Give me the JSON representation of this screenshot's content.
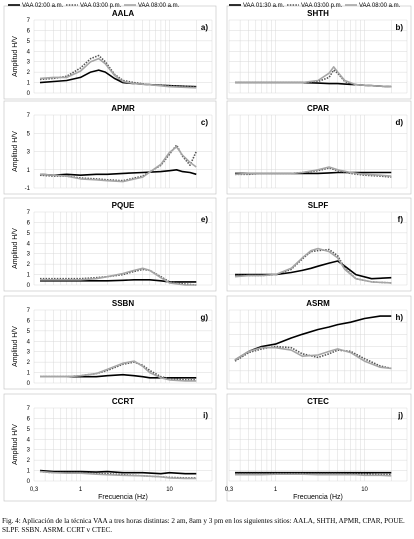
{
  "figure": {
    "caption": "Fig. 4: Aplicación de la técnica VAA a tres horas distintas: 2 am, 8am y 3 pm en los siguientes sitios: AALA, SHTH, APMR, CPAR, POUE. SLPF. SSBN. ASRM. CCRT v CTEC."
  },
  "colors": {
    "series_a": "#000000",
    "series_b": "#555555",
    "series_c": "#a6a6a6",
    "grid": "#d9d9d9"
  },
  "chart_data": [
    {
      "type": "line",
      "title": "AALA",
      "panel_letter": "a)",
      "ylabel": "Amplitud H/V",
      "xlabel": "",
      "x_scale": "log",
      "xlim": [
        0.3,
        30
      ],
      "ylim": [
        0,
        7
      ],
      "y_ticks": [
        "0",
        "1",
        "2",
        "3",
        "4",
        "5",
        "6",
        "7"
      ],
      "x_ticks": [],
      "legend": {
        "placement": "top",
        "entries": [
          "VAA 02:00 a.m.",
          "VAA 03:00 p.m.",
          "VAA 08:00 a.m."
        ]
      },
      "x": [
        0.35,
        0.5,
        0.7,
        1.0,
        1.3,
        1.6,
        1.9,
        2.4,
        3.0,
        4.0,
        6.0,
        10,
        20
      ],
      "series": [
        {
          "name": "VAA 02:00 a.m.",
          "values": [
            1.0,
            1.1,
            1.2,
            1.5,
            2.0,
            2.2,
            2.0,
            1.4,
            1.0,
            0.9,
            0.8,
            0.7,
            0.6
          ]
        },
        {
          "name": "VAA 03:00 p.m.",
          "values": [
            1.3,
            1.4,
            1.6,
            2.4,
            3.3,
            3.6,
            3.0,
            1.8,
            1.2,
            1.0,
            0.8,
            0.7,
            0.6
          ]
        },
        {
          "name": "VAA 08:00 a.m.",
          "values": [
            1.4,
            1.5,
            1.5,
            2.1,
            3.0,
            3.3,
            2.8,
            1.7,
            1.1,
            0.9,
            0.8,
            0.6,
            0.5
          ]
        }
      ]
    },
    {
      "type": "line",
      "title": "SHTH",
      "panel_letter": "b)",
      "ylabel": "",
      "xlabel": "",
      "x_scale": "log",
      "xlim": [
        0.3,
        30
      ],
      "ylim": [
        0,
        7
      ],
      "y_ticks": [],
      "x_ticks": [],
      "legend": {
        "placement": "top",
        "entries": [
          "VAA 01:30 a.m.",
          "VAA 03:00 p.m.",
          "VAA 08:00 a.m."
        ]
      },
      "x": [
        0.35,
        0.5,
        0.7,
        1.0,
        1.5,
        2.0,
        3.0,
        4.0,
        4.5,
        5.0,
        6.0,
        8.0,
        12,
        20
      ],
      "series": [
        {
          "name": "VAA 01:30 a.m.",
          "values": [
            1.0,
            1.0,
            1.0,
            1.0,
            1.0,
            1.0,
            0.95,
            0.9,
            0.9,
            0.9,
            0.85,
            0.8,
            0.7,
            0.6
          ]
        },
        {
          "name": "VAA 03:00 p.m.",
          "values": [
            1.0,
            1.0,
            1.0,
            1.0,
            1.0,
            1.0,
            1.1,
            1.5,
            2.2,
            1.9,
            1.1,
            0.8,
            0.7,
            0.6
          ]
        },
        {
          "name": "VAA 08:00 a.m.",
          "values": [
            1.0,
            1.0,
            1.0,
            1.0,
            1.0,
            1.0,
            1.2,
            1.9,
            2.5,
            2.0,
            1.2,
            0.8,
            0.7,
            0.6
          ]
        }
      ]
    },
    {
      "type": "line",
      "title": "APMR",
      "panel_letter": "c)",
      "ylabel": "Amplitud H/V",
      "xlabel": "",
      "x_scale": "log",
      "xlim": [
        0.3,
        30
      ],
      "ylim": [
        -1,
        7
      ],
      "y_ticks": [
        "-1",
        "1",
        "3",
        "5",
        "7"
      ],
      "x_ticks": [],
      "x": [
        0.35,
        0.5,
        0.7,
        1.0,
        1.5,
        2.0,
        3.0,
        5.0,
        8.0,
        10,
        12,
        14,
        17,
        20
      ],
      "series": [
        {
          "values": [
            0.5,
            0.4,
            0.5,
            0.4,
            0.5,
            0.5,
            0.6,
            0.7,
            0.8,
            0.9,
            1.0,
            0.8,
            0.7,
            0.5
          ]
        },
        {
          "values": [
            0.4,
            0.3,
            0.3,
            0.1,
            0.0,
            -0.1,
            -0.2,
            0.3,
            1.5,
            2.7,
            3.7,
            2.5,
            1.5,
            3.0
          ]
        },
        {
          "values": [
            0.5,
            0.4,
            0.3,
            0.0,
            -0.1,
            -0.2,
            -0.3,
            0.2,
            1.6,
            2.9,
            3.5,
            2.6,
            1.8,
            1.3
          ]
        }
      ]
    },
    {
      "type": "line",
      "title": "CPAR",
      "panel_letter": "d)",
      "ylabel": "",
      "xlabel": "",
      "x_scale": "log",
      "xlim": [
        0.3,
        30
      ],
      "ylim": [
        -1,
        7
      ],
      "y_ticks": [],
      "x_ticks": [],
      "x": [
        0.35,
        0.5,
        0.7,
        1.0,
        1.5,
        2.0,
        3.0,
        4.0,
        5.0,
        7.0,
        10,
        15,
        20
      ],
      "series": [
        {
          "values": [
            0.6,
            0.6,
            0.6,
            0.6,
            0.6,
            0.6,
            0.6,
            0.65,
            0.7,
            0.7,
            0.7,
            0.7,
            0.7
          ]
        },
        {
          "values": [
            0.5,
            0.5,
            0.6,
            0.6,
            0.6,
            0.7,
            0.9,
            1.2,
            0.9,
            0.6,
            0.4,
            0.3,
            0.2
          ]
        },
        {
          "values": [
            0.5,
            0.6,
            0.6,
            0.6,
            0.6,
            0.7,
            1.0,
            1.3,
            1.0,
            0.7,
            0.5,
            0.4,
            0.3
          ]
        }
      ]
    },
    {
      "type": "line",
      "title": "PQUE",
      "panel_letter": "e)",
      "ylabel": "Amplitud H/V",
      "xlabel": "",
      "x_scale": "log",
      "xlim": [
        0.3,
        30
      ],
      "ylim": [
        0,
        7
      ],
      "y_ticks": [
        "0",
        "1",
        "2",
        "3",
        "4",
        "5",
        "6",
        "7"
      ],
      "x_ticks": [],
      "x": [
        0.35,
        0.5,
        0.7,
        1.0,
        1.5,
        2.0,
        3.0,
        4.0,
        5.0,
        6.0,
        8.0,
        10,
        15,
        20
      ],
      "series": [
        {
          "values": [
            0.4,
            0.4,
            0.4,
            0.4,
            0.4,
            0.4,
            0.45,
            0.5,
            0.5,
            0.5,
            0.4,
            0.3,
            0.3,
            0.3
          ]
        },
        {
          "values": [
            0.6,
            0.6,
            0.6,
            0.6,
            0.7,
            0.8,
            1.0,
            1.3,
            1.5,
            1.4,
            0.8,
            0.3,
            0.1,
            0.0
          ]
        },
        {
          "values": [
            0.5,
            0.5,
            0.5,
            0.5,
            0.6,
            0.8,
            1.1,
            1.4,
            1.6,
            1.4,
            0.7,
            0.2,
            0.0,
            0.0
          ]
        }
      ]
    },
    {
      "type": "line",
      "title": "SLPF",
      "panel_letter": "f)",
      "ylabel": "",
      "xlabel": "",
      "x_scale": "log",
      "xlim": [
        0.3,
        30
      ],
      "ylim": [
        0,
        7
      ],
      "y_ticks": [],
      "x_ticks": [],
      "x": [
        0.35,
        0.5,
        0.7,
        1.0,
        1.5,
        2.0,
        2.5,
        3.0,
        4.0,
        5.0,
        6.0,
        8.0,
        12,
        20
      ],
      "series": [
        {
          "values": [
            1.0,
            1.0,
            1.0,
            1.0,
            1.2,
            1.4,
            1.6,
            1.8,
            2.1,
            2.3,
            1.8,
            1.0,
            0.6,
            0.7
          ]
        },
        {
          "values": [
            0.9,
            0.9,
            0.9,
            1.0,
            1.5,
            2.5,
            3.2,
            3.3,
            3.4,
            2.8,
            1.6,
            0.6,
            0.3,
            0.2
          ]
        },
        {
          "values": [
            0.8,
            0.9,
            0.9,
            1.0,
            1.6,
            2.6,
            3.3,
            3.5,
            3.2,
            2.6,
            1.5,
            0.6,
            0.3,
            0.2
          ]
        }
      ]
    },
    {
      "type": "line",
      "title": "SSBN",
      "panel_letter": "g)",
      "ylabel": "Amplitud H/V",
      "xlabel": "",
      "x_scale": "log",
      "xlim": [
        0.3,
        30
      ],
      "ylim": [
        0,
        7
      ],
      "y_ticks": [
        "0",
        "1",
        "2",
        "3",
        "4",
        "5",
        "6",
        "7"
      ],
      "x_ticks": [],
      "x": [
        0.35,
        0.5,
        0.7,
        1.0,
        1.5,
        2.0,
        3.0,
        4.0,
        5.0,
        6.0,
        8.0,
        10,
        15,
        20
      ],
      "series": [
        {
          "values": [
            0.6,
            0.6,
            0.6,
            0.6,
            0.6,
            0.7,
            0.8,
            0.7,
            0.6,
            0.5,
            0.5,
            0.5,
            0.5,
            0.5
          ]
        },
        {
          "values": [
            0.6,
            0.6,
            0.6,
            0.7,
            0.9,
            1.2,
            1.8,
            2.0,
            1.7,
            1.2,
            0.6,
            0.4,
            0.3,
            0.3
          ]
        },
        {
          "values": [
            0.6,
            0.6,
            0.6,
            0.7,
            0.9,
            1.3,
            1.9,
            2.1,
            1.6,
            1.0,
            0.5,
            0.3,
            0.2,
            0.2
          ]
        }
      ]
    },
    {
      "type": "line",
      "title": "ASRM",
      "panel_letter": "h)",
      "ylabel": "",
      "xlabel": "",
      "x_scale": "log",
      "xlim": [
        0.3,
        30
      ],
      "ylim": [
        0,
        6
      ],
      "y_ticks": [],
      "x_ticks": [],
      "x": [
        0.35,
        0.5,
        0.7,
        1.0,
        1.5,
        2.0,
        3.0,
        4.0,
        5.0,
        7.0,
        10,
        15,
        20
      ],
      "series": [
        {
          "values": [
            1.9,
            2.6,
            3.0,
            3.2,
            3.7,
            4.0,
            4.4,
            4.6,
            4.8,
            5.0,
            5.3,
            5.5,
            5.5
          ]
        },
        {
          "values": [
            1.8,
            2.5,
            2.8,
            3.0,
            2.9,
            2.4,
            2.1,
            2.4,
            2.7,
            2.6,
            2.0,
            1.4,
            1.2
          ]
        },
        {
          "values": [
            1.9,
            2.6,
            2.9,
            2.9,
            2.7,
            2.2,
            2.3,
            2.6,
            2.8,
            2.5,
            1.8,
            1.3,
            1.2
          ]
        }
      ]
    },
    {
      "type": "line",
      "title": "CCRT",
      "panel_letter": "i)",
      "ylabel": "Amplitud H/V",
      "xlabel": "Frecuencia (Hz)",
      "x_scale": "log",
      "xlim": [
        0.3,
        30
      ],
      "ylim": [
        0,
        7
      ],
      "y_ticks": [
        "0",
        "1",
        "2",
        "3",
        "4",
        "5",
        "6",
        "7"
      ],
      "x_ticks": [
        "0,3",
        "1",
        "10"
      ],
      "x": [
        0.35,
        0.5,
        0.7,
        1.0,
        1.5,
        2.0,
        3.0,
        5.0,
        8.0,
        10,
        15,
        20
      ],
      "series": [
        {
          "values": [
            1.0,
            0.9,
            0.9,
            0.9,
            0.85,
            0.9,
            0.8,
            0.8,
            0.7,
            0.8,
            0.7,
            0.7
          ]
        },
        {
          "values": [
            0.9,
            0.8,
            0.8,
            0.8,
            0.7,
            0.7,
            0.6,
            0.5,
            0.4,
            0.35,
            0.3,
            0.3
          ]
        },
        {
          "values": [
            0.9,
            0.8,
            0.75,
            0.75,
            0.65,
            0.6,
            0.55,
            0.5,
            0.4,
            0.3,
            0.25,
            0.25
          ]
        }
      ]
    },
    {
      "type": "line",
      "title": "CTEC",
      "panel_letter": "j)",
      "ylabel": "",
      "xlabel": "Frecuencia (Hz)",
      "x_scale": "log",
      "xlim": [
        0.3,
        30
      ],
      "ylim": [
        0,
        7
      ],
      "y_ticks": [],
      "x_ticks": [
        "0,3",
        "1",
        "10"
      ],
      "x": [
        0.35,
        0.5,
        0.7,
        1.0,
        1.5,
        2.0,
        3.0,
        5.0,
        8.0,
        10,
        15,
        20
      ],
      "series": [
        {
          "values": [
            0.8,
            0.8,
            0.8,
            0.8,
            0.8,
            0.8,
            0.8,
            0.8,
            0.8,
            0.8,
            0.8,
            0.8
          ]
        },
        {
          "values": [
            0.7,
            0.7,
            0.7,
            0.7,
            0.7,
            0.7,
            0.7,
            0.7,
            0.65,
            0.65,
            0.6,
            0.6
          ]
        },
        {
          "values": [
            0.6,
            0.6,
            0.6,
            0.65,
            0.65,
            0.65,
            0.6,
            0.6,
            0.6,
            0.55,
            0.55,
            0.5
          ]
        }
      ]
    }
  ]
}
